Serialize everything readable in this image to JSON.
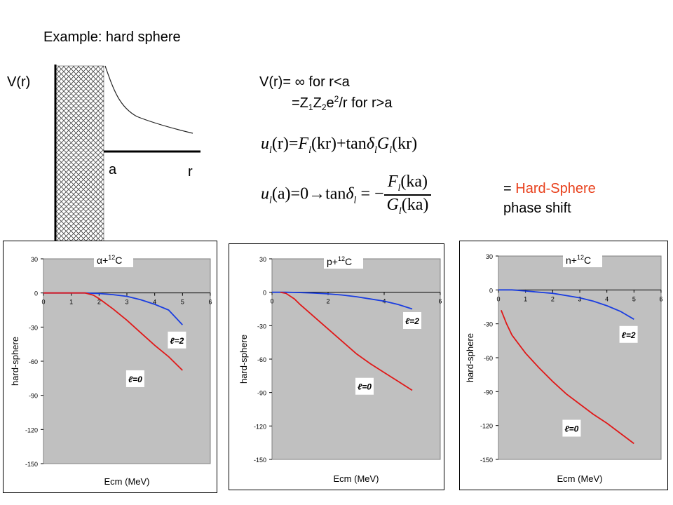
{
  "header": {
    "title": "Example: hard sphere",
    "v_label": "V(r)",
    "a_label": "a",
    "r_label": "r"
  },
  "potential": {
    "line1_a": "V(r)= ",
    "line1_inf": "∞",
    "line1_b": "  for r<a",
    "line2_a": "=Z",
    "line2_s1": "1",
    "line2_b": "Z",
    "line2_s2": "2",
    "line2_c": "e",
    "line2_sup": "2",
    "line2_d": "/r   for r>a"
  },
  "equations": {
    "eq1": {
      "u": "u",
      "l": "l",
      "lhs": "(r)=",
      "F": "F",
      "kr1": "(kr)+",
      "tan": "tan",
      "delta": "δ",
      "G": "G",
      "kr2": "(kr)"
    },
    "eq2": {
      "u": "u",
      "l": "l",
      "lhs": "(a)=0",
      "arrow": "→",
      "tan": "tan",
      "delta": "δ",
      "eq": " = −",
      "Fnum": "F",
      "kanum": "(ka)",
      "Gden": "G",
      "kaden": "(ka)"
    }
  },
  "note": {
    "prefix": "= ",
    "highlight": "Hard-Sphere",
    "line2": "phase shift"
  },
  "chart_data": [
    {
      "type": "line",
      "title_main": "α+",
      "title_sup": "12",
      "title_end": "C",
      "xlabel": "Ecm (MeV)",
      "ylabel": "hard-sphere",
      "xlim": [
        0,
        6
      ],
      "ylim": [
        -150,
        30
      ],
      "xticks": [
        "0",
        "1",
        "2",
        "3",
        "4",
        "5",
        "6"
      ],
      "yticks": [
        "30",
        "0",
        "-30",
        "-60",
        "-90",
        "-120",
        "-150"
      ],
      "grid": false,
      "series": [
        {
          "name": "ℓ=2",
          "color": "#1a3de0",
          "x": [
            0,
            1,
            1.5,
            2,
            2.5,
            3,
            3.5,
            4,
            4.5,
            5
          ],
          "y": [
            0,
            0,
            0,
            -0.5,
            -1.5,
            -3,
            -6,
            -10,
            -15,
            -28
          ]
        },
        {
          "name": "ℓ=0",
          "color": "#e01818",
          "x": [
            0,
            1,
            1.5,
            1.8,
            2,
            2.5,
            3,
            3.5,
            4,
            4.5,
            5
          ],
          "y": [
            0,
            0,
            0,
            -2,
            -5,
            -14,
            -24,
            -35,
            -46,
            -56,
            -68
          ]
        }
      ],
      "annotations": [
        {
          "text": "ℓ=2",
          "x": 4.8,
          "y": -42
        },
        {
          "text": "ℓ=0",
          "x": 3.3,
          "y": -76
        }
      ]
    },
    {
      "type": "line",
      "title_main": "p+",
      "title_sup": "12",
      "title_end": "C",
      "xlabel": "Ecm (MeV)",
      "ylabel": "hard-sphere",
      "xlim": [
        0,
        6
      ],
      "ylim": [
        -150,
        30
      ],
      "xticks": [
        "0",
        "2",
        "4",
        "6"
      ],
      "yticks": [
        "30",
        "0",
        "-30",
        "-60",
        "-90",
        "-120",
        "-150"
      ],
      "grid": false,
      "series": [
        {
          "name": "ℓ=2",
          "color": "#1a3de0",
          "x": [
            0,
            0.5,
            1,
            1.5,
            2,
            2.5,
            3,
            3.5,
            4,
            4.5,
            5
          ],
          "y": [
            0,
            0,
            -0.3,
            -0.8,
            -1.5,
            -2.5,
            -4,
            -6,
            -8,
            -11,
            -15
          ]
        },
        {
          "name": "ℓ=0",
          "color": "#e01818",
          "x": [
            0.3,
            0.5,
            0.8,
            1,
            1.5,
            2,
            2.5,
            3,
            3.5,
            4,
            4.5,
            5
          ],
          "y": [
            0,
            -1,
            -6,
            -11,
            -22,
            -33,
            -44,
            -55,
            -64,
            -72,
            -80,
            -88
          ]
        }
      ],
      "annotations": [
        {
          "text": "ℓ=2",
          "x": 5,
          "y": -26
        },
        {
          "text": "ℓ=0",
          "x": 3.3,
          "y": -85
        }
      ]
    },
    {
      "type": "line",
      "title_main": "n+",
      "title_sup": "12",
      "title_end": "C",
      "xlabel": "Ecm (MeV)",
      "ylabel": "hard-sphere",
      "xlim": [
        0,
        6
      ],
      "ylim": [
        -150,
        30
      ],
      "xticks": [
        "0",
        "1",
        "2",
        "3",
        "4",
        "5",
        "6"
      ],
      "yticks": [
        "30",
        "0",
        "-30",
        "-60",
        "-90",
        "-120",
        "-150"
      ],
      "grid": false,
      "series": [
        {
          "name": "ℓ=2",
          "color": "#1a3de0",
          "x": [
            0,
            0.5,
            1,
            1.5,
            2,
            2.5,
            3,
            3.5,
            4,
            4.5,
            5
          ],
          "y": [
            0,
            0,
            -1,
            -2,
            -3,
            -5,
            -7,
            -10,
            -14,
            -19,
            -26
          ]
        },
        {
          "name": "ℓ=0",
          "color": "#e01818",
          "x": [
            0.1,
            0.3,
            0.5,
            1,
            1.5,
            2,
            2.5,
            3,
            3.5,
            4,
            4.5,
            5
          ],
          "y": [
            -18,
            -30,
            -40,
            -56,
            -69,
            -81,
            -92,
            -101,
            -110,
            -118,
            -127,
            -136
          ]
        }
      ],
      "annotations": [
        {
          "text": "ℓ=2",
          "x": 4.8,
          "y": -40
        },
        {
          "text": "ℓ=0",
          "x": 2.7,
          "y": -123
        }
      ]
    }
  ]
}
